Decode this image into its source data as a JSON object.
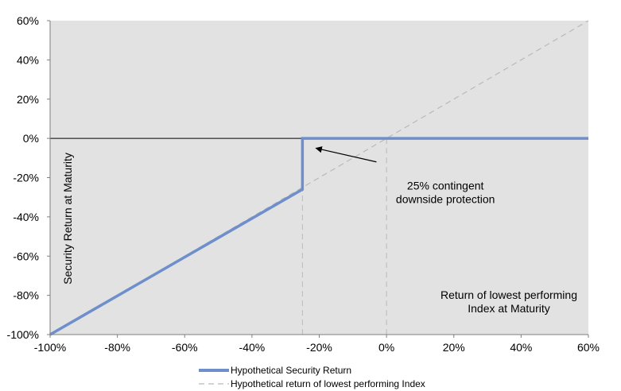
{
  "chart_data": {
    "type": "line",
    "xlabel": "Return of lowest performing Index at Maturity",
    "ylabel": "Security Return at Maturity",
    "xlim": [
      -100,
      60
    ],
    "ylim": [
      -100,
      60
    ],
    "x_ticks": [
      "-100%",
      "-80%",
      "-60%",
      "-40%",
      "-20%",
      "0%",
      "20%",
      "40%",
      "60%"
    ],
    "y_ticks": [
      "60%",
      "40%",
      "20%",
      "0%",
      "-20%",
      "-40%",
      "-60%",
      "-80%",
      "-100%"
    ],
    "x_tick_values": [
      -100,
      -80,
      -60,
      -40,
      -20,
      0,
      20,
      40,
      60
    ],
    "y_tick_values": [
      60,
      40,
      20,
      0,
      -20,
      -40,
      -60,
      -80,
      -100
    ],
    "grid": false,
    "background_color": "#e2e2e2",
    "series": [
      {
        "name": "Hypothetical Security Return",
        "style": "solid",
        "color": "#6e8fcb",
        "x": [
          -100,
          -25,
          -25,
          60
        ],
        "y": [
          -100,
          -26,
          0,
          0
        ]
      },
      {
        "name": "Hypothetical return of lowest performing Index",
        "style": "dashed",
        "color": "#b9b9b9",
        "x": [
          -100,
          60
        ],
        "y": [
          -100,
          60
        ]
      }
    ],
    "zero_line": {
      "y": 0,
      "color": "#000000"
    },
    "reference_lines": [
      {
        "x": -25,
        "style": "dashed",
        "color": "#b9b9b9"
      },
      {
        "x": 0,
        "style": "dashed",
        "color": "#b9b9b9"
      }
    ],
    "annotation": {
      "lines": [
        "25% contingent",
        "downside protection"
      ],
      "arrow_from": [
        -3,
        -12
      ],
      "arrow_to": [
        -21,
        -5
      ],
      "text_at": [
        17.5,
        -26
      ]
    },
    "legend": {
      "placement": "bottom"
    }
  }
}
